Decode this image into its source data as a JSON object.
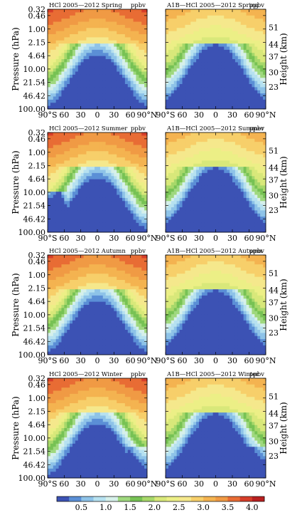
{
  "chart_data": {
    "type": "heatmap",
    "left_axis": {
      "label": "Pressure (hPa)",
      "ticks": [
        "0.32",
        "0.46",
        "1.00",
        "2.15",
        "4.64",
        "10.00",
        "21.54",
        "46.42",
        "100.00"
      ],
      "range": [
        0.32,
        100.0
      ],
      "scale": "log"
    },
    "right_axis": {
      "label": "Height (km)",
      "ticks": [
        "51",
        "44",
        "37",
        "30",
        "23"
      ]
    },
    "x_axis": {
      "ticks": [
        "90°S",
        "60",
        "30",
        "0",
        "30",
        "60",
        "90°N"
      ],
      "range": [
        -90,
        90
      ]
    },
    "colorbar": {
      "ticks": [
        "0.5",
        "1.0",
        "1.5",
        "2.0",
        "2.5",
        "3.0",
        "3.5",
        "4.0"
      ],
      "levels": [
        0.25,
        0.5,
        0.75,
        1.0,
        1.25,
        1.5,
        1.75,
        2.0,
        2.25,
        2.5,
        2.75,
        3.0,
        3.25,
        3.5,
        3.75,
        4.0
      ],
      "colors": [
        "#3c52b4",
        "#5b8fd6",
        "#8ec3e8",
        "#b6e1f0",
        "#d6f0ea",
        "#9fd87e",
        "#77c254",
        "#a7d86a",
        "#d8e87a",
        "#ecef86",
        "#f5e88c",
        "#f7cf6a",
        "#f4b350",
        "#f09a44",
        "#e86c34",
        "#d63e2a",
        "#b82020"
      ]
    },
    "units": "ppbv",
    "panels": [
      {
        "left_title": "HCl 2005–2012 Spring",
        "right_title": "A1B–HCl 2005–2012 Spring",
        "right_title_display": "A1B—HCl 2005—2012 Spring",
        "left_title_display": "HCl 2005—2012 Spring"
      },
      {
        "left_title": "HCl 2005–2012 Summer",
        "right_title": "A1B–HCl 2005–2012 Summer",
        "right_title_display": "A1B—HCl 2005—2012 Summer",
        "left_title_display": "HCl 2005—2012 Summer"
      },
      {
        "left_title": "HCl 2005–2012 Autumn",
        "right_title": "A1B–HCl 2005–2012 Autumn",
        "right_title_display": "A1B—HCl 2005—2012 Autumn",
        "left_title_display": "HCl 2005—2012 Autumn"
      },
      {
        "left_title": "HCl 2005–2012 Winter",
        "right_title": "A1B–HCl 2005–2012 Winter",
        "right_title_display": "A1B—HCl 2005—2012 Winter",
        "left_title_display": "HCl 2005—2012 Winter"
      }
    ]
  }
}
